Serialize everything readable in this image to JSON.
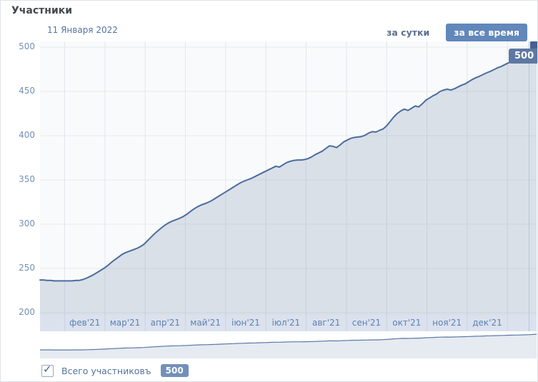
{
  "header": {
    "title": "Участники"
  },
  "toolbar": {
    "date_label": "11 Января 2022",
    "range_buttons": [
      {
        "label": "за сутки",
        "active": false
      },
      {
        "label": "за все время",
        "active": true
      }
    ]
  },
  "tooltip": {
    "value": "500"
  },
  "legend": {
    "checkbox_checked": true,
    "check_glyph": "✓",
    "label": "Всего участниковъ",
    "value": "500"
  },
  "colors": {
    "accent_button": "#6287ba",
    "line": "#4b6d9d",
    "area_fill": "rgba(90,120,160,0.20)",
    "plot_bg": "#f9fafb",
    "band_bg": "#dbe2ee",
    "tooltip_bg": "#5d78a3",
    "legend_badge_bg": "#7390ba",
    "marker": "#44618f",
    "crosshair": "#b7c5da",
    "grid_h": "#e8eaee",
    "grid_v": "#e2e6ee",
    "band_sep": "#c9d4e5",
    "nav_line": "#5a7aa6",
    "nav_fill": "#e6eaf1"
  },
  "chart_data": {
    "type": "area",
    "title": "Участники",
    "series": [
      {
        "name": "Всего участниковъ",
        "values": [
          237,
          237,
          236.5,
          236.5,
          236,
          236,
          236,
          236,
          236,
          236,
          236.5,
          236.5,
          237.5,
          239,
          241,
          243,
          245.5,
          248,
          250.5,
          253.5,
          257,
          260,
          263,
          266,
          268,
          269.5,
          271,
          272.5,
          274.5,
          277,
          281,
          285,
          289,
          292.5,
          296,
          299,
          301.5,
          303.5,
          305,
          306.5,
          308.5,
          311,
          314,
          317,
          319.5,
          321.5,
          323,
          324.5,
          326.5,
          329,
          331.5,
          334,
          336.5,
          339,
          341.5,
          344,
          346.5,
          348.5,
          350,
          351.5,
          353.5,
          355.5,
          357.5,
          359.5,
          361.5,
          363.5,
          365.5,
          364.5,
          367,
          369.5,
          371,
          372,
          372.5,
          372.5,
          373,
          374,
          376,
          378.5,
          380.5,
          382.5,
          385.5,
          388.5,
          388,
          386.5,
          389.5,
          393,
          395,
          397,
          398,
          398.5,
          399,
          400.5,
          403,
          404.5,
          404,
          406,
          407.5,
          411,
          416,
          421,
          425,
          428,
          430,
          428.5,
          431,
          433.5,
          432.5,
          436,
          440,
          442.5,
          445,
          447,
          450,
          451.5,
          452.5,
          451.5,
          453,
          455,
          457,
          458.5,
          461,
          463.5,
          465.5,
          467,
          469,
          471,
          472.5,
          474.5,
          476.5,
          478,
          480,
          482,
          483.5,
          485,
          485.5,
          487.5,
          489.5,
          492,
          495,
          500
        ]
      }
    ],
    "y_ticks": [
      500,
      450,
      400,
      350,
      300,
      250,
      200
    ],
    "ylim": [
      200,
      500
    ],
    "x_labels": [
      "фев'21",
      "мар'21",
      "апр'21",
      "май'21",
      "іюн'21",
      "іюл'21",
      "авг'21",
      "сен'21",
      "окт'21",
      "ноя'21",
      "дек'21"
    ],
    "grid": true,
    "last_point": {
      "value": 500,
      "date": "11 Января 2022"
    },
    "navigator": {
      "shown": true,
      "shows_full_series": true
    }
  }
}
